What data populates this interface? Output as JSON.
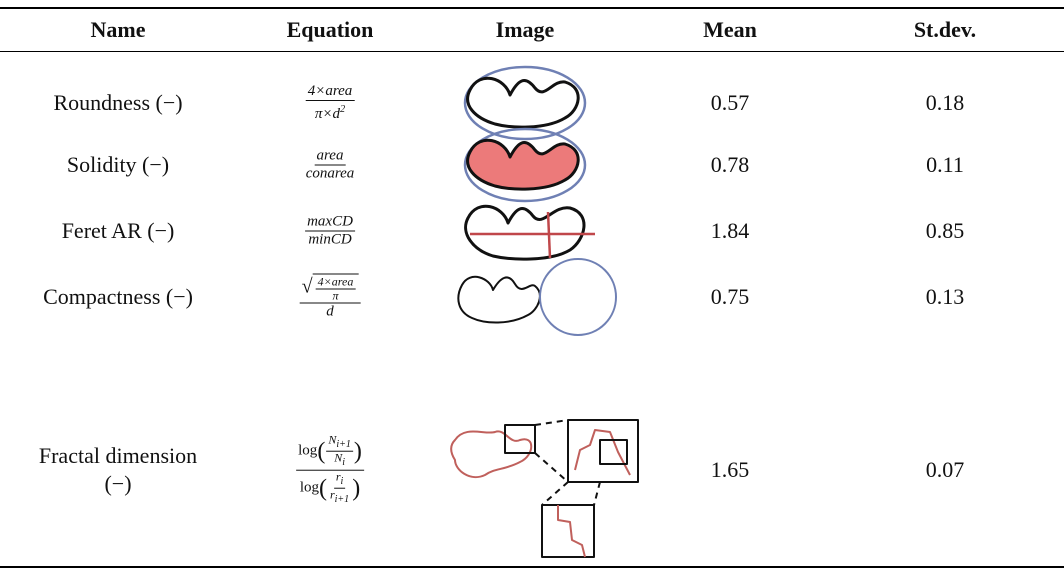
{
  "table": {
    "header": [
      "Name",
      "Equation",
      "Image",
      "Mean",
      "St.dev."
    ],
    "rows": [
      {
        "name": "Roundness (−)",
        "equation": {
          "num": "4×area",
          "den": "π×d",
          "den_sup": "2"
        },
        "mean": 0.57,
        "stdev": 0.18
      },
      {
        "name": "Solidity (−)",
        "equation": {
          "num": "area",
          "den": "conarea"
        },
        "mean": 0.78,
        "stdev": 0.11
      },
      {
        "name": "Feret AR (−)",
        "equation": {
          "num": "maxCD",
          "den": "minCD"
        },
        "mean": 1.84,
        "stdev": 0.85
      },
      {
        "name": "Compactness (−)",
        "equation": {
          "inner_num": "4×area",
          "inner_den": "π",
          "den": "d"
        },
        "mean": 0.75,
        "stdev": 0.13
      },
      {
        "name": "Fractal dimension (−)",
        "equation": {
          "log": "log",
          "num_num": "N",
          "num_num_sub": "i+1",
          "num_den": "N",
          "num_den_sub": "i",
          "den_num": "r",
          "den_num_sub": "i",
          "den_den": "r",
          "den_den_sub": "i+1"
        },
        "mean": 1.65,
        "stdev": 0.07
      }
    ]
  }
}
